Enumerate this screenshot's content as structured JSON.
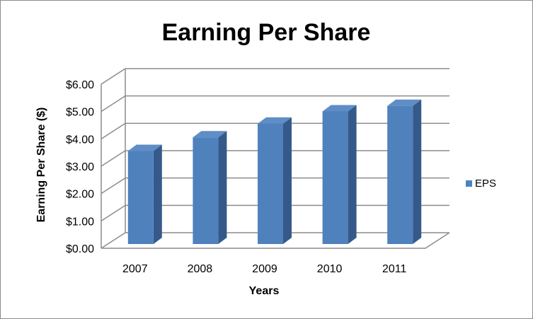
{
  "chart_data": {
    "type": "bar",
    "title": "Earning Per Share",
    "xlabel": "Years",
    "ylabel": "Earning Per Share ($)",
    "categories": [
      "2007",
      "2008",
      "2009",
      "2010",
      "2011"
    ],
    "series": [
      {
        "name": "EPS",
        "values": [
          3.4,
          3.9,
          4.4,
          4.85,
          5.05
        ]
      }
    ],
    "ylim": [
      0,
      6
    ],
    "yticks": [
      "$0.00",
      "$1.00",
      "$2.00",
      "$3.00",
      "$4.00",
      "$5.00",
      "$6.00"
    ],
    "grid": true,
    "legend_position": "right",
    "colors": {
      "bar_front": "#4f81bd",
      "bar_side": "#355a8a",
      "bar_top": "#5f8dc6",
      "grid": "#8c8c8c"
    }
  }
}
